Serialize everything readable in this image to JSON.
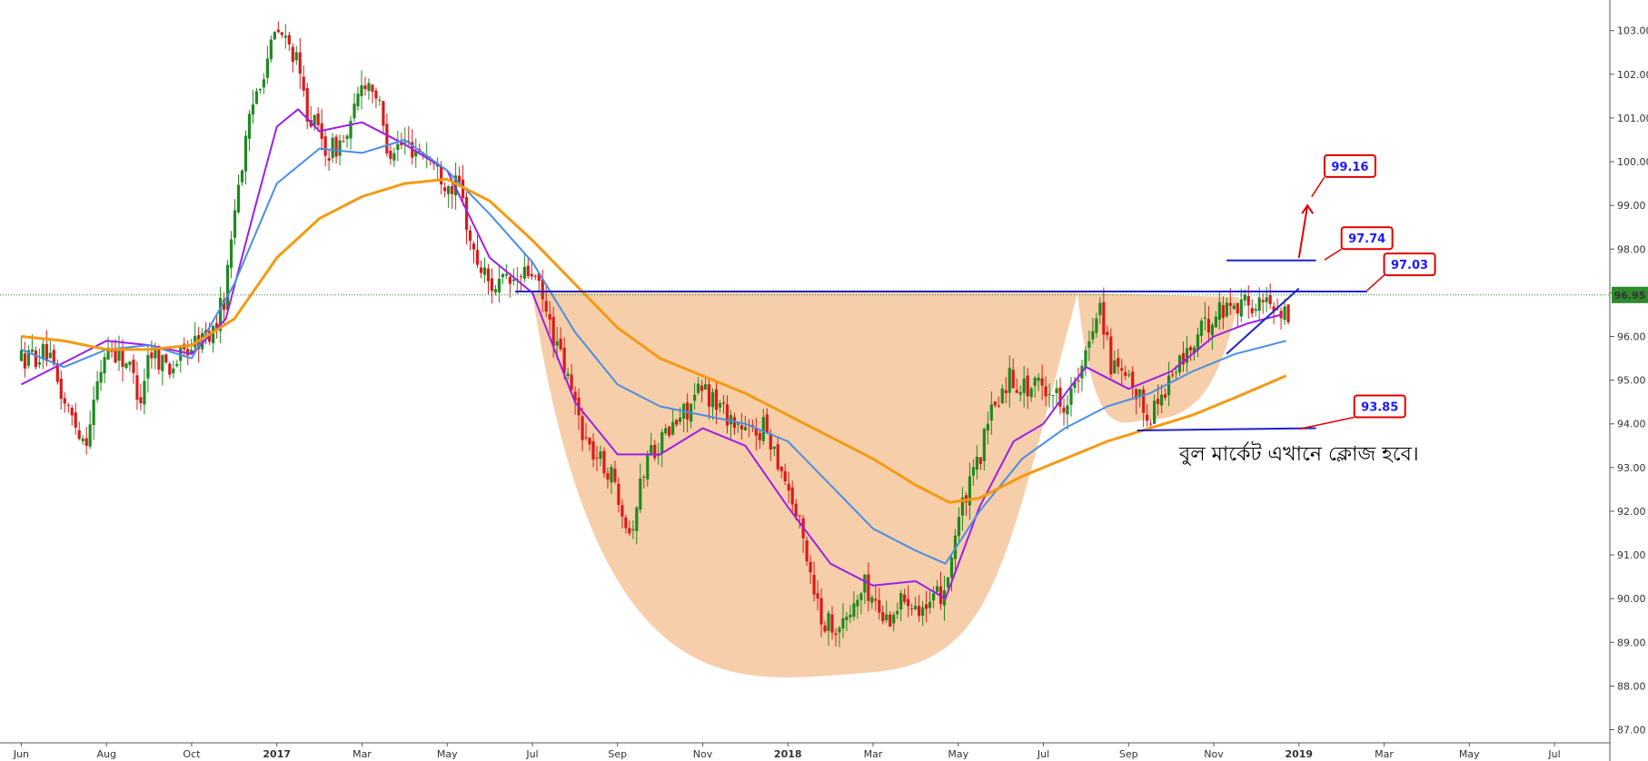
{
  "chart_data": {
    "type": "candlestick",
    "y_axis": {
      "ticks": [
        "87.00",
        "88.00",
        "89.00",
        "90.00",
        "91.00",
        "92.00",
        "93.00",
        "94.00",
        "95.00",
        "96.00",
        "97.00",
        "98.00",
        "99.00",
        "100.00",
        "101.00",
        "102.00",
        "103.00"
      ],
      "ylim": [
        86.7,
        103.7
      ],
      "current_price": "96.95",
      "position": "right"
    },
    "x_axis": {
      "ticks": [
        "Jun",
        "Aug",
        "Oct",
        "2017",
        "Mar",
        "May",
        "Jul",
        "Sep",
        "Nov",
        "2018",
        "Mar",
        "May",
        "Jul",
        "Sep",
        "Nov",
        "2019",
        "Mar",
        "May",
        "Jul"
      ],
      "tick_t": [
        0,
        2,
        4,
        6,
        8,
        10,
        12,
        14,
        16,
        18,
        20,
        22,
        24,
        26,
        28,
        30,
        32,
        34,
        36
      ],
      "xlim_t": [
        -0.5,
        37.3
      ]
    },
    "price_path": [
      [
        0,
        95.5
      ],
      [
        0.6,
        95.6
      ],
      [
        1,
        94.5
      ],
      [
        1.5,
        93.6
      ],
      [
        2,
        95.8
      ],
      [
        2.5,
        95.4
      ],
      [
        2.8,
        94.6
      ],
      [
        3,
        95.7
      ],
      [
        3.5,
        95.3
      ],
      [
        4,
        95.8
      ],
      [
        4.5,
        96.1
      ],
      [
        4.8,
        97
      ],
      [
        5,
        99
      ],
      [
        5.5,
        101.6
      ],
      [
        6,
        103
      ],
      [
        6.4,
        102.5
      ],
      [
        6.7,
        101.2
      ],
      [
        7.2,
        100.2
      ],
      [
        7.7,
        100.6
      ],
      [
        8,
        101.9
      ],
      [
        8.3,
        101.7
      ],
      [
        8.6,
        100.3
      ],
      [
        9,
        100.4
      ],
      [
        9.5,
        100.2
      ],
      [
        10,
        99.5
      ],
      [
        10.3,
        99.4
      ],
      [
        10.6,
        97.9
      ],
      [
        11,
        97.2
      ],
      [
        11.5,
        97.2
      ],
      [
        12,
        97.5
      ],
      [
        12.3,
        96.6
      ],
      [
        12.8,
        95.1
      ],
      [
        13.3,
        93.5
      ],
      [
        13.8,
        92.9
      ],
      [
        14,
        92.5
      ],
      [
        14.3,
        91.5
      ],
      [
        14.7,
        93.3
      ],
      [
        15.2,
        93.8
      ],
      [
        15.6,
        94.3
      ],
      [
        16,
        94.8
      ],
      [
        16.5,
        94.3
      ],
      [
        17,
        93.8
      ],
      [
        17.5,
        93.9
      ],
      [
        18,
        92.6
      ],
      [
        18.4,
        91.2
      ],
      [
        18.8,
        89.5
      ],
      [
        19.3,
        89.4
      ],
      [
        19.8,
        90.3
      ],
      [
        20.3,
        89.5
      ],
      [
        20.8,
        90.1
      ],
      [
        21.3,
        89.7
      ],
      [
        21.7,
        90.3
      ],
      [
        22,
        91.8
      ],
      [
        22.4,
        92.9
      ],
      [
        22.8,
        94.3
      ],
      [
        23.2,
        95.1
      ],
      [
        23.6,
        94.8
      ],
      [
        24,
        94.9
      ],
      [
        24.5,
        94.5
      ],
      [
        24.9,
        95.1
      ],
      [
        25.3,
        96.9
      ],
      [
        25.6,
        95.3
      ],
      [
        26,
        94.9
      ],
      [
        26.5,
        94.2
      ],
      [
        27,
        95.1
      ],
      [
        27.5,
        95.8
      ],
      [
        28,
        96.5
      ],
      [
        28.5,
        96.8
      ],
      [
        29,
        96.7
      ],
      [
        29.4,
        96.8
      ],
      [
        29.8,
        96.4
      ]
    ],
    "moving_averages": [
      {
        "color": "#9b1fe8",
        "points": [
          [
            0,
            94.9
          ],
          [
            1,
            95.4
          ],
          [
            2,
            95.9
          ],
          [
            3,
            95.8
          ],
          [
            4,
            95.6
          ],
          [
            4.8,
            96.4
          ],
          [
            5.5,
            99
          ],
          [
            6,
            100.8
          ],
          [
            6.5,
            101.2
          ],
          [
            7,
            100.7
          ],
          [
            8,
            100.9
          ],
          [
            9,
            100.4
          ],
          [
            10,
            99.8
          ],
          [
            11,
            97.8
          ],
          [
            12,
            97
          ],
          [
            13,
            94.5
          ],
          [
            14,
            93.3
          ],
          [
            15,
            93.3
          ],
          [
            16,
            93.9
          ],
          [
            17,
            93.5
          ],
          [
            18,
            92.1
          ],
          [
            19,
            90.8
          ],
          [
            20,
            90.3
          ],
          [
            21,
            90.4
          ],
          [
            21.7,
            90
          ],
          [
            22.5,
            92.1
          ],
          [
            23.3,
            93.6
          ],
          [
            24,
            94
          ],
          [
            24.6,
            94.8
          ],
          [
            25,
            95.3
          ],
          [
            26,
            94.8
          ],
          [
            27,
            95.2
          ],
          [
            28,
            96
          ],
          [
            28.8,
            96.3
          ],
          [
            29.6,
            96.5
          ]
        ]
      },
      {
        "color": "#4a8ee6",
        "points": [
          [
            0,
            95.7
          ],
          [
            1,
            95.3
          ],
          [
            2,
            95.7
          ],
          [
            3,
            95.8
          ],
          [
            4,
            95.5
          ],
          [
            5,
            97.2
          ],
          [
            6,
            99.5
          ],
          [
            7,
            100.3
          ],
          [
            8,
            100.2
          ],
          [
            9,
            100.5
          ],
          [
            10,
            99.8
          ],
          [
            11,
            98.8
          ],
          [
            12,
            97.7
          ],
          [
            13,
            96.1
          ],
          [
            14,
            94.9
          ],
          [
            15,
            94.4
          ],
          [
            16,
            94.2
          ],
          [
            17,
            94
          ],
          [
            18,
            93.6
          ],
          [
            19,
            92.6
          ],
          [
            20,
            91.6
          ],
          [
            21,
            91.1
          ],
          [
            21.7,
            90.8
          ],
          [
            22.5,
            92
          ],
          [
            23.5,
            93.2
          ],
          [
            24.5,
            93.9
          ],
          [
            25.5,
            94.4
          ],
          [
            26.5,
            94.7
          ],
          [
            27.5,
            95.2
          ],
          [
            28.5,
            95.6
          ],
          [
            29.7,
            95.9
          ]
        ]
      },
      {
        "color": "#f39a12",
        "points": [
          [
            0,
            96
          ],
          [
            1,
            95.9
          ],
          [
            2,
            95.7
          ],
          [
            3,
            95.7
          ],
          [
            4,
            95.8
          ],
          [
            5,
            96.4
          ],
          [
            6,
            97.8
          ],
          [
            7,
            98.7
          ],
          [
            8,
            99.2
          ],
          [
            9,
            99.5
          ],
          [
            10,
            99.6
          ],
          [
            11,
            99.1
          ],
          [
            12,
            98.2
          ],
          [
            13,
            97.2
          ],
          [
            14,
            96.2
          ],
          [
            15,
            95.5
          ],
          [
            16,
            95.1
          ],
          [
            17,
            94.7
          ],
          [
            18,
            94.2
          ],
          [
            19,
            93.7
          ],
          [
            20,
            93.2
          ],
          [
            21,
            92.6
          ],
          [
            21.8,
            92.2
          ],
          [
            22.5,
            92.3
          ],
          [
            23.5,
            92.8
          ],
          [
            24.5,
            93.2
          ],
          [
            25.5,
            93.6
          ],
          [
            26.5,
            93.9
          ],
          [
            27.5,
            94.2
          ],
          [
            28.5,
            94.6
          ],
          [
            29.7,
            95.1
          ]
        ]
      }
    ],
    "cup_pattern": {
      "color": "#f4c59a",
      "cup_rim_start": [
        12,
        97.0
      ],
      "cup_bottom": [
        19.8,
        88.3
      ],
      "cup_right": [
        24.8,
        97.0
      ],
      "handle_start": [
        24.8,
        97.0
      ],
      "handle_bottom": [
        26.5,
        94.1
      ],
      "handle_end": [
        28.6,
        96.9
      ]
    },
    "lines": [
      {
        "color": "#2020c8",
        "from": [
          11.6,
          97.03
        ],
        "to": [
          31.6,
          97.03
        ]
      },
      {
        "color": "#2020c8",
        "from": [
          28.3,
          97.74
        ],
        "to": [
          30.4,
          97.74
        ]
      },
      {
        "color": "#2020c8",
        "from": [
          26.2,
          93.85
        ],
        "to": [
          30.4,
          93.9
        ]
      },
      {
        "color": "#2020c8",
        "from": [
          28.3,
          95.6
        ],
        "to": [
          30.0,
          97.1
        ]
      }
    ],
    "annotations": [
      {
        "label": "99.16",
        "value": 99.16,
        "box_t": 30.6,
        "box_y": 99.9,
        "arrow_to": [
          30.3,
          99.2
        ]
      },
      {
        "label": "97.74",
        "value": 97.74,
        "box_t": 31.0,
        "box_y": 98.25,
        "arrow_to": [
          30.6,
          97.75
        ]
      },
      {
        "label": "97.03",
        "value": 97.03,
        "box_t": 32.0,
        "box_y": 97.65,
        "arrow_to": [
          31.6,
          97.05
        ]
      },
      {
        "label": "93.85",
        "value": 93.85,
        "box_t": 31.3,
        "box_y": 94.4,
        "arrow_to": [
          30.0,
          93.88
        ]
      }
    ],
    "up_arrow": {
      "color": "#e00000",
      "from": [
        30.0,
        97.8
      ],
      "to": [
        30.2,
        99.0
      ]
    },
    "note": "বুল মার্কেট এখানে ক্লোজ হবে।",
    "colors": {
      "up": "#1f8a1f",
      "down": "#d81b1b",
      "price_line": "#2d8a2d",
      "box_border": "#e00000",
      "axis_label_bg": "#2d8a2d"
    }
  }
}
